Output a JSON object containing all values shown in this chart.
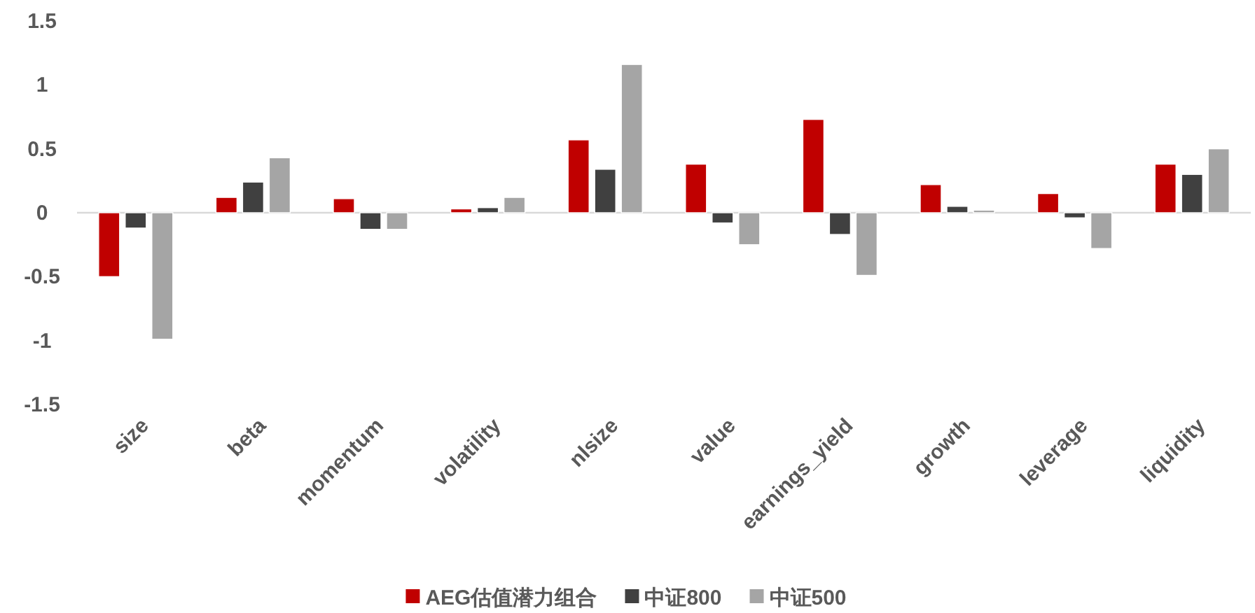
{
  "chart_data": {
    "type": "bar",
    "categories": [
      "size",
      "beta",
      "momentum",
      "volatility",
      "nlsize",
      "value",
      "earnings_yield",
      "growth",
      "leverage",
      "liquidity"
    ],
    "series": [
      {
        "name": "AEG估值潜力组合",
        "color": "#c00000",
        "values": [
          -0.5,
          0.12,
          0.11,
          0.03,
          0.57,
          0.38,
          0.73,
          0.22,
          0.15,
          0.38
        ]
      },
      {
        "name": "中证800",
        "color": "#404040",
        "values": [
          -0.12,
          0.24,
          -0.13,
          0.04,
          0.34,
          -0.08,
          -0.17,
          0.05,
          -0.04,
          0.3
        ]
      },
      {
        "name": "中证500",
        "color": "#a5a5a5",
        "values": [
          -0.99,
          0.43,
          -0.13,
          0.12,
          1.16,
          -0.25,
          -0.49,
          0.02,
          -0.28,
          0.5
        ]
      }
    ],
    "ylim": [
      -1.5,
      1.5
    ],
    "yticks": [
      -1.5,
      -1,
      -0.5,
      0,
      0.5,
      1,
      1.5
    ],
    "legend": "bottom"
  }
}
